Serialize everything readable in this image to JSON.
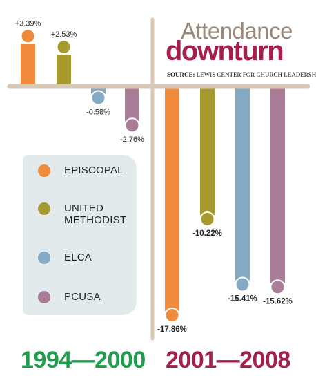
{
  "header": {
    "title_line1": "Attendance",
    "title_line2": "downturn",
    "source_prefix": "SOURCE:",
    "source_text": "LEWIS CENTER FOR CHURCH LEADERSHIP"
  },
  "legend": [
    {
      "label": "EPISCOPAL",
      "color": "#f08a3c"
    },
    {
      "label": "UNITED METHODIST",
      "color": "#a69a2e"
    },
    {
      "label": "ELCA",
      "color": "#84a9c2"
    },
    {
      "label": "PCUSA",
      "color": "#a97c97"
    }
  ],
  "periods": {
    "left": "1994—2000",
    "right": "2001—2008"
  },
  "chart_data": {
    "type": "bar",
    "title": "Attendance downturn",
    "categories": [
      "1994—2000",
      "2001—2008"
    ],
    "series": [
      {
        "name": "EPISCOPAL",
        "color": "#f08a3c",
        "values": [
          3.39,
          -17.86
        ],
        "labels": [
          "+3.39%",
          "-17.86%"
        ]
      },
      {
        "name": "UNITED METHODIST",
        "color": "#a69a2e",
        "values": [
          2.53,
          -10.22
        ],
        "labels": [
          "+2.53%",
          "-10.22%"
        ]
      },
      {
        "name": "ELCA",
        "color": "#84a9c2",
        "values": [
          -0.58,
          -15.41
        ],
        "labels": [
          "-0.58%",
          "-15.41%"
        ]
      },
      {
        "name": "PCUSA",
        "color": "#a97c97",
        "values": [
          -2.76,
          -15.62
        ],
        "labels": [
          "-2.76%",
          "-15.62%"
        ]
      }
    ]
  }
}
